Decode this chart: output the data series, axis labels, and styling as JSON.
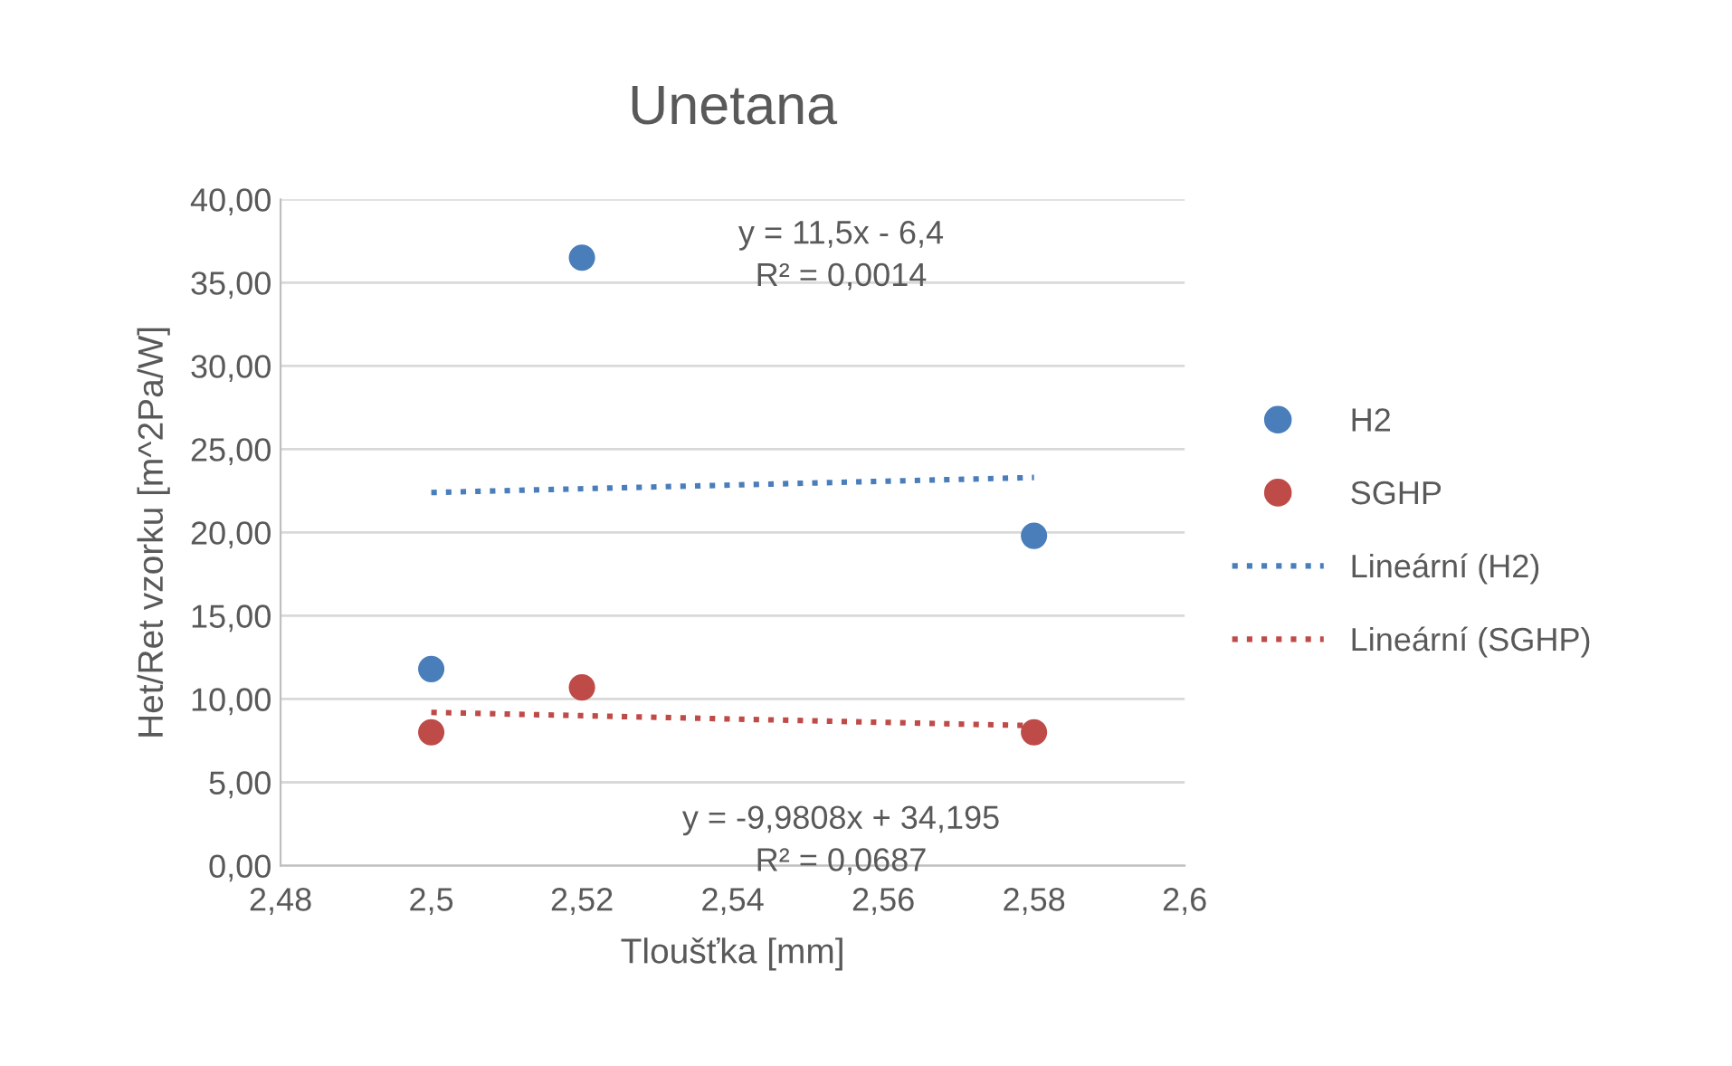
{
  "chart_data": {
    "type": "scatter",
    "title": "Unetana",
    "xlabel": "Tloušťka [mm]",
    "ylabel": "Het/Ret vzorku [m^2Pa/W]",
    "series": [
      {
        "name": "H2",
        "color": "#4a7ebb",
        "marker": "circle",
        "x": [
          2.5,
          2.52,
          2.58
        ],
        "values": [
          11.8,
          36.5,
          19.8
        ]
      },
      {
        "name": "SGHP",
        "color": "#be4b48",
        "marker": "circle",
        "x": [
          2.5,
          2.52,
          2.58
        ],
        "values": [
          8.0,
          10.7,
          8.0
        ]
      },
      {
        "name": "Lineární (H2)",
        "type": "line",
        "color": "#4a7ebb",
        "marker": "none",
        "line_style": "dotted",
        "x": [
          2.5,
          2.58
        ],
        "values": [
          22.4,
          23.3
        ]
      },
      {
        "name": "Lineární (SGHP)",
        "type": "line",
        "color": "#be4b48",
        "marker": "none",
        "line_style": "dotted",
        "x": [
          2.5,
          2.58
        ],
        "values": [
          9.2,
          8.4
        ]
      }
    ],
    "annotations": [
      "y = 11,5x - 6,4\nR² = 0,0014",
      "y = -9,9808x + 34,195\nR² = 0,0687"
    ],
    "xlim": [
      2.48,
      2.6
    ],
    "xticks": [
      {
        "value": 2.48,
        "label": "2,48"
      },
      {
        "value": 2.5,
        "label": "2,5"
      },
      {
        "value": 2.52,
        "label": "2,52"
      },
      {
        "value": 2.54,
        "label": "2,54"
      },
      {
        "value": 2.56,
        "label": "2,56"
      },
      {
        "value": 2.58,
        "label": "2,58"
      },
      {
        "value": 2.6,
        "label": "2,6"
      }
    ],
    "ylim": [
      0,
      40
    ],
    "yticks": [
      {
        "value": 0,
        "label": "0,00"
      },
      {
        "value": 5,
        "label": "5,00"
      },
      {
        "value": 10,
        "label": "10,00"
      },
      {
        "value": 15,
        "label": "15,00"
      },
      {
        "value": 20,
        "label": "20,00"
      },
      {
        "value": 25,
        "label": "25,00"
      },
      {
        "value": 30,
        "label": "30,00"
      },
      {
        "value": 35,
        "label": "35,00"
      },
      {
        "value": 40,
        "label": "40,00"
      }
    ],
    "grid": "y",
    "legend": "right"
  }
}
